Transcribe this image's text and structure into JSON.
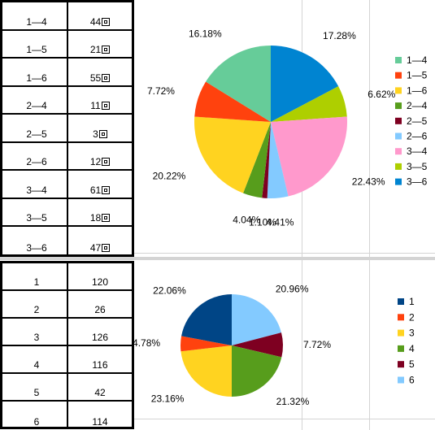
{
  "top_table": {
    "rows": [
      {
        "label": "1—4",
        "value": "44"
      },
      {
        "label": "1—5",
        "value": "21"
      },
      {
        "label": "1—6",
        "value": "55"
      },
      {
        "label": "2—4",
        "value": "11"
      },
      {
        "label": "2—5",
        "value": "3"
      },
      {
        "label": "2—6",
        "value": "12"
      },
      {
        "label": "3—4",
        "value": "61"
      },
      {
        "label": "3—5",
        "value": "18"
      },
      {
        "label": "3—6",
        "value": "47"
      }
    ]
  },
  "bottom_table": {
    "rows": [
      {
        "label": "1",
        "value": "120"
      },
      {
        "label": "2",
        "value": "26"
      },
      {
        "label": "3",
        "value": "126"
      },
      {
        "label": "4",
        "value": "116"
      },
      {
        "label": "5",
        "value": "42"
      },
      {
        "label": "6",
        "value": "114"
      }
    ]
  },
  "chart_data": [
    {
      "type": "pie",
      "categories": [
        "1—4",
        "1—5",
        "1—6",
        "2—4",
        "2—5",
        "2—6",
        "3—4",
        "3—5",
        "3—6"
      ],
      "values": [
        44,
        21,
        55,
        11,
        3,
        12,
        61,
        18,
        47
      ],
      "percent_labels": [
        "16.18%",
        "7.72%",
        "20.22%",
        "4.04%",
        "1.10%",
        "4.41%",
        "22.43%",
        "6.62%",
        "17.28%"
      ],
      "colors": [
        "#66cc99",
        "#ff420e",
        "#ffd320",
        "#579d1c",
        "#7e0021",
        "#83caff",
        "#ff99cc",
        "#aecf00",
        "#0084d1"
      ],
      "legend_position": "right",
      "start_angle_deg": 0,
      "direction": "counterclockwise"
    },
    {
      "type": "pie",
      "categories": [
        "1",
        "2",
        "3",
        "4",
        "5",
        "6"
      ],
      "values": [
        120,
        26,
        126,
        116,
        42,
        114
      ],
      "percent_labels": [
        "22.06%",
        "4.78%",
        "23.16%",
        "21.32%",
        "7.72%",
        "20.96%"
      ],
      "colors": [
        "#004586",
        "#ff420e",
        "#ffd320",
        "#579d1c",
        "#7e0021",
        "#83caff"
      ],
      "legend_position": "right",
      "start_angle_deg": 0,
      "direction": "counterclockwise"
    }
  ]
}
